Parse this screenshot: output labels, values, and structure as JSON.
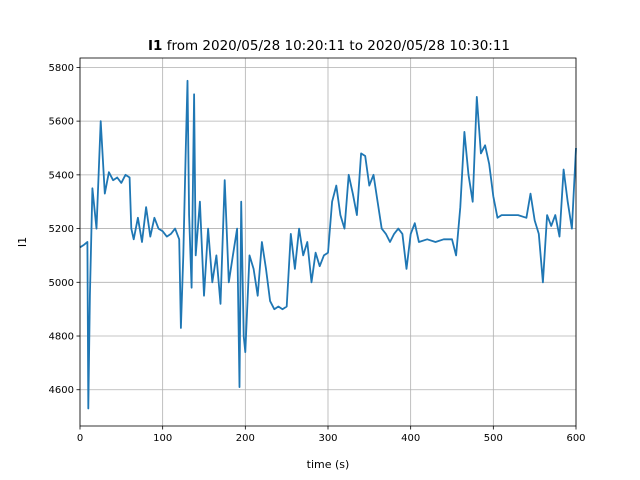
{
  "chart_data": {
    "type": "line",
    "title_bold": "I1",
    "title_rest": " from 2020/05/28 10:20:11 to 2020/05/28 10:30:11",
    "xlabel": "time (s)",
    "ylabel": "I1",
    "xlim": [
      0,
      600
    ],
    "ylim": [
      4465,
      5835
    ],
    "xticks": [
      0,
      100,
      200,
      300,
      400,
      500,
      600
    ],
    "yticks": [
      4600,
      4800,
      5000,
      5200,
      5400,
      5600,
      5800
    ],
    "grid": true,
    "legend": "none",
    "series": [
      {
        "color": "#1f77b4",
        "x": [
          0,
          5,
          9,
          10,
          12,
          15,
          20,
          25,
          30,
          35,
          40,
          45,
          50,
          55,
          60,
          62,
          65,
          70,
          75,
          80,
          85,
          90,
          95,
          100,
          105,
          110,
          115,
          120,
          122,
          125,
          128,
          130,
          132,
          135,
          138,
          140,
          145,
          150,
          155,
          160,
          165,
          170,
          175,
          180,
          185,
          190,
          193,
          195,
          198,
          200,
          205,
          210,
          215,
          220,
          225,
          230,
          235,
          240,
          245,
          250,
          255,
          260,
          265,
          270,
          275,
          280,
          285,
          290,
          295,
          300,
          305,
          310,
          315,
          320,
          325,
          330,
          335,
          340,
          345,
          350,
          355,
          360,
          365,
          370,
          375,
          380,
          385,
          390,
          395,
          400,
          405,
          410,
          420,
          430,
          440,
          450,
          455,
          460,
          465,
          470,
          475,
          480,
          485,
          490,
          495,
          500,
          505,
          510,
          520,
          530,
          540,
          545,
          550,
          555,
          560,
          565,
          570,
          575,
          580,
          585,
          590,
          595,
          600
        ],
        "y": [
          5130,
          5140,
          5150,
          4530,
          4950,
          5350,
          5200,
          5600,
          5330,
          5410,
          5380,
          5390,
          5370,
          5400,
          5390,
          5200,
          5160,
          5240,
          5150,
          5280,
          5170,
          5240,
          5200,
          5190,
          5170,
          5180,
          5200,
          5160,
          4830,
          5100,
          5500,
          5750,
          5250,
          4980,
          5700,
          5100,
          5300,
          4950,
          5200,
          5000,
          5100,
          4920,
          5380,
          5000,
          5100,
          5200,
          4610,
          5300,
          4800,
          4740,
          5100,
          5050,
          4950,
          5150,
          5050,
          4930,
          4900,
          4910,
          4900,
          4910,
          5180,
          5050,
          5200,
          5100,
          5150,
          5000,
          5110,
          5060,
          5100,
          5110,
          5300,
          5360,
          5250,
          5200,
          5400,
          5330,
          5250,
          5480,
          5470,
          5360,
          5400,
          5300,
          5200,
          5180,
          5150,
          5180,
          5200,
          5180,
          5050,
          5180,
          5220,
          5150,
          5160,
          5150,
          5160,
          5160,
          5100,
          5280,
          5560,
          5400,
          5300,
          5690,
          5480,
          5510,
          5440,
          5320,
          5240,
          5250,
          5250,
          5250,
          5240,
          5330,
          5230,
          5180,
          5000,
          5250,
          5210,
          5250,
          5170,
          5420,
          5300,
          5200,
          5500
        ]
      }
    ]
  }
}
